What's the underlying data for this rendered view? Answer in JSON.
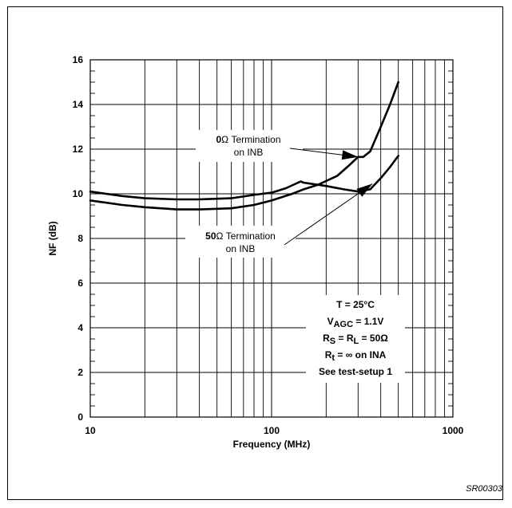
{
  "figure_id": "SR00303",
  "chart_data": {
    "type": "line",
    "title": "",
    "xlabel": "Frequency (MHz)",
    "ylabel": "NF (dB)",
    "xscale": "log",
    "xlim": [
      10,
      1000
    ],
    "ylim": [
      0,
      16
    ],
    "x_ticks": [
      "10",
      "100",
      "1000"
    ],
    "y_ticks": [
      "0",
      "2",
      "4",
      "6",
      "8",
      "10",
      "12",
      "14",
      "16"
    ],
    "grid": true,
    "series": [
      {
        "label": "0Ω Termination on INB",
        "x": [
          10,
          15,
          20,
          30,
          40,
          60,
          80,
          100,
          130,
          150,
          180,
          230,
          270,
          300,
          320,
          350,
          400,
          450,
          500
        ],
        "y": [
          9.7,
          9.5,
          9.4,
          9.3,
          9.3,
          9.35,
          9.5,
          9.7,
          10.0,
          10.2,
          10.4,
          10.8,
          11.3,
          11.65,
          11.65,
          11.9,
          13.0,
          14.0,
          15.0
        ]
      },
      {
        "label": "50Ω Termination on INB",
        "x": [
          10,
          15,
          20,
          30,
          40,
          60,
          80,
          100,
          120,
          140,
          145,
          150,
          200,
          250,
          300,
          350,
          400,
          450,
          500
        ],
        "y": [
          10.1,
          9.9,
          9.8,
          9.75,
          9.75,
          9.8,
          9.95,
          10.05,
          10.25,
          10.5,
          10.55,
          10.5,
          10.35,
          10.2,
          10.1,
          10.2,
          10.7,
          11.2,
          11.7
        ]
      }
    ],
    "annotations": [
      {
        "id": "zero_ohm",
        "lines": [
          [
            {
              "t": "0",
              "b": true
            },
            {
              "t": "Ω Termination",
              "b": false
            }
          ],
          [
            {
              "t": "on INB",
              "b": false
            }
          ]
        ],
        "arrow_to": [
          300,
          11.65
        ]
      },
      {
        "id": "fifty_ohm",
        "lines": [
          [
            {
              "t": "50",
              "b": true
            },
            {
              "t": "Ω Termination",
              "b": false
            }
          ],
          [
            {
              "t": "on INB",
              "b": false
            }
          ]
        ],
        "arrow_to": [
          360,
          10.45
        ]
      }
    ],
    "conditions": [
      [
        {
          "t": "T = 25°C",
          "s": ""
        }
      ],
      [
        {
          "t": "V",
          "s": ""
        },
        {
          "t": "AGC",
          "s": "sub"
        },
        {
          "t": " = 1.1V",
          "s": ""
        }
      ],
      [
        {
          "t": "R",
          "s": ""
        },
        {
          "t": "S",
          "s": "sub"
        },
        {
          "t": " = R",
          "s": ""
        },
        {
          "t": "L",
          "s": "sub"
        },
        {
          "t": " = 50Ω",
          "s": ""
        }
      ],
      [
        {
          "t": "R",
          "s": ""
        },
        {
          "t": "t",
          "s": "sub"
        },
        {
          "t": " = ∞ on INA",
          "s": ""
        }
      ],
      [
        {
          "t": "See test-setup 1",
          "s": ""
        }
      ]
    ]
  }
}
